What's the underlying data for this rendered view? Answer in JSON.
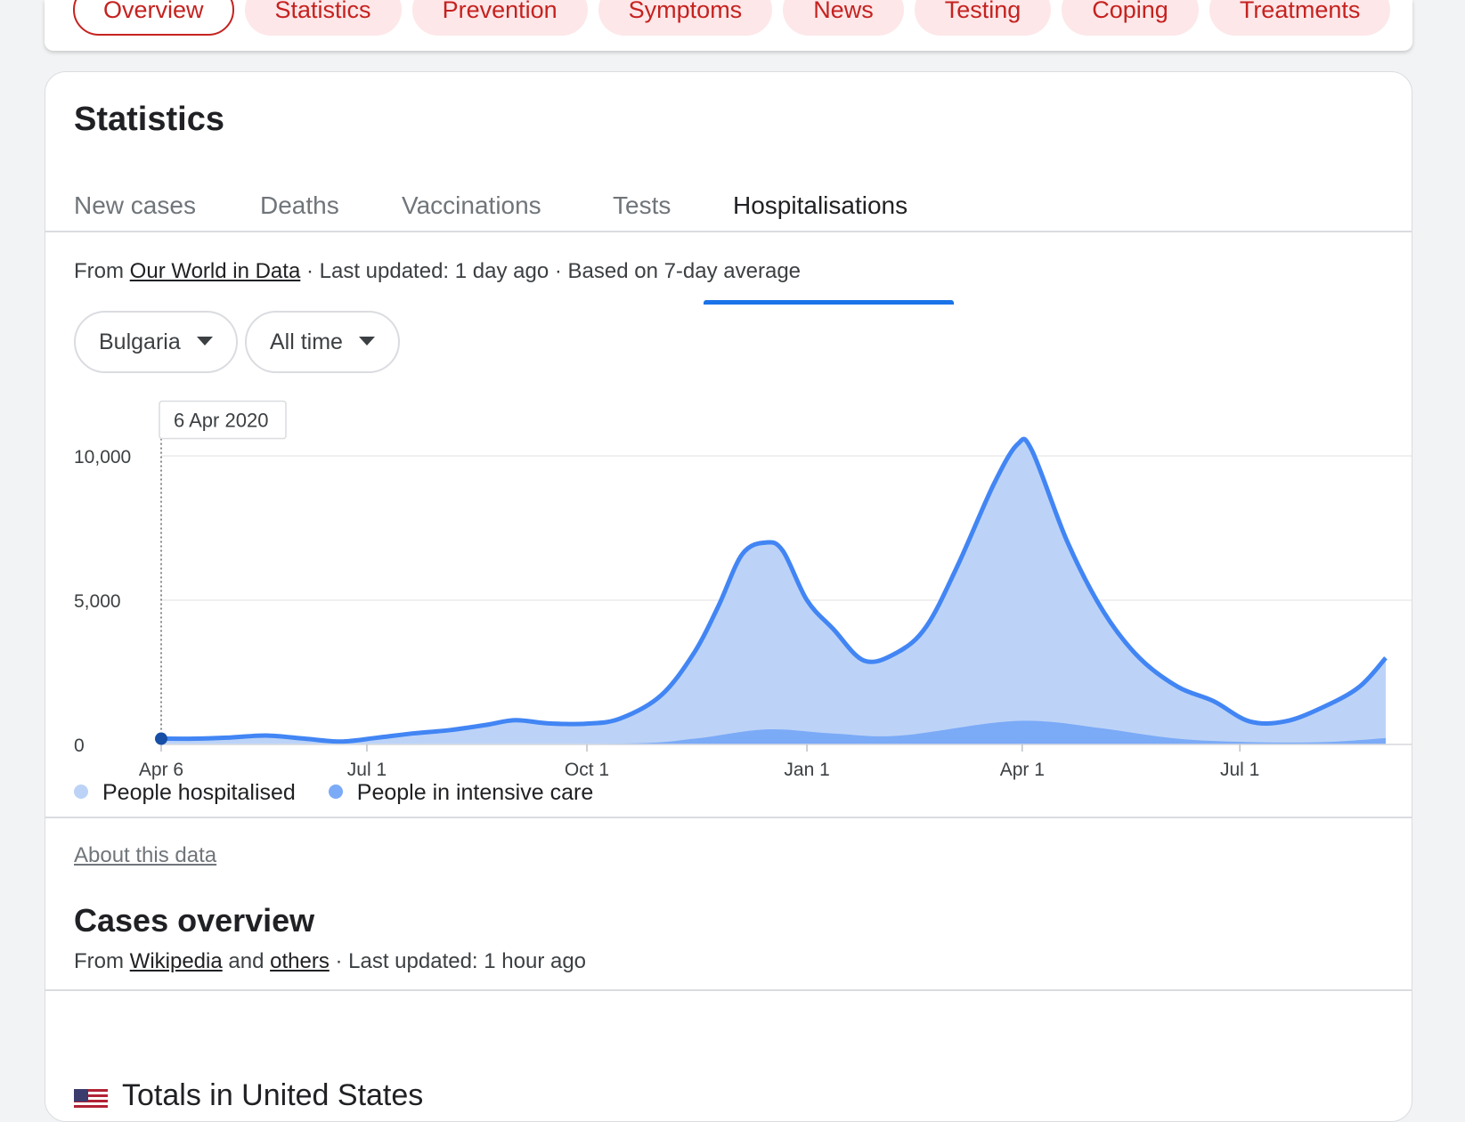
{
  "chips": [
    {
      "label": "Overview",
      "active": true
    },
    {
      "label": "Statistics",
      "active": false
    },
    {
      "label": "Prevention",
      "active": false
    },
    {
      "label": "Symptoms",
      "active": false
    },
    {
      "label": "News",
      "active": false
    },
    {
      "label": "Testing",
      "active": false
    },
    {
      "label": "Coping",
      "active": false
    },
    {
      "label": "Treatments",
      "active": false
    }
  ],
  "section_title": "Statistics",
  "tabs": [
    {
      "label": "New cases",
      "active": false
    },
    {
      "label": "Deaths",
      "active": false
    },
    {
      "label": "Vaccinations",
      "active": false
    },
    {
      "label": "Tests",
      "active": false
    },
    {
      "label": "Hospitalisations",
      "active": true
    }
  ],
  "source": {
    "prefix": "From",
    "link": "Our World in Data",
    "suffix": "· Last updated: 1 day ago · Based on 7-day average"
  },
  "filters": {
    "region": "Bulgaria",
    "range": "All time"
  },
  "colors": {
    "brand_red": "#c5221f",
    "chip_bg": "#fde7e9",
    "accent_blue": "#1a73e8",
    "hosp_fill": "#bcd3f7",
    "hosp_line": "#4285f4",
    "icu_fill": "#7baaf7"
  },
  "chart_data": {
    "type": "area",
    "tooltip": "6 Apr 2020",
    "x_ticks": [
      "Apr 6",
      "Jul 1",
      "Oct 1",
      "Jan 1",
      "Apr 1",
      "Jul 1"
    ],
    "y_ticks": [
      "0",
      "5,000",
      "10,000"
    ],
    "ylim": [
      0,
      10000
    ],
    "x_range": [
      "2020-04-06",
      "2021-08-31"
    ],
    "grid": true,
    "legend_position": "bottom-left",
    "series": [
      {
        "name": "People hospitalised",
        "points": [
          [
            "2020-04-06",
            200
          ],
          [
            "2020-04-20",
            200
          ],
          [
            "2020-05-05",
            240
          ],
          [
            "2020-05-20",
            310
          ],
          [
            "2020-06-05",
            200
          ],
          [
            "2020-06-20",
            100
          ],
          [
            "2020-07-05",
            230
          ],
          [
            "2020-07-20",
            380
          ],
          [
            "2020-08-05",
            500
          ],
          [
            "2020-08-20",
            680
          ],
          [
            "2020-09-01",
            840
          ],
          [
            "2020-09-15",
            730
          ],
          [
            "2020-10-01",
            720
          ],
          [
            "2020-10-15",
            900
          ],
          [
            "2020-11-01",
            1700
          ],
          [
            "2020-11-15",
            3200
          ],
          [
            "2020-11-25",
            4800
          ],
          [
            "2020-12-05",
            6600
          ],
          [
            "2020-12-15",
            7000
          ],
          [
            "2020-12-22",
            6700
          ],
          [
            "2021-01-01",
            5000
          ],
          [
            "2021-01-12",
            4000
          ],
          [
            "2021-01-25",
            2900
          ],
          [
            "2021-02-08",
            3200
          ],
          [
            "2021-02-20",
            4100
          ],
          [
            "2021-03-05",
            6200
          ],
          [
            "2021-03-20",
            9000
          ],
          [
            "2021-03-30",
            10400
          ],
          [
            "2021-04-05",
            10200
          ],
          [
            "2021-04-20",
            7000
          ],
          [
            "2021-05-05",
            4600
          ],
          [
            "2021-05-20",
            3000
          ],
          [
            "2021-06-05",
            2000
          ],
          [
            "2021-06-20",
            1500
          ],
          [
            "2021-07-05",
            800
          ],
          [
            "2021-07-20",
            800
          ],
          [
            "2021-08-05",
            1300
          ],
          [
            "2021-08-20",
            2000
          ],
          [
            "2021-08-31",
            3000
          ]
        ]
      },
      {
        "name": "People in intensive care",
        "points": [
          [
            "2020-04-06",
            0
          ],
          [
            "2020-07-05",
            10
          ],
          [
            "2020-10-15",
            30
          ],
          [
            "2020-11-15",
            200
          ],
          [
            "2020-12-15",
            520
          ],
          [
            "2021-01-12",
            380
          ],
          [
            "2021-02-08",
            300
          ],
          [
            "2021-03-20",
            750
          ],
          [
            "2021-04-10",
            800
          ],
          [
            "2021-05-05",
            550
          ],
          [
            "2021-06-05",
            200
          ],
          [
            "2021-07-05",
            80
          ],
          [
            "2021-08-05",
            80
          ],
          [
            "2021-08-31",
            220
          ]
        ]
      }
    ]
  },
  "legend": [
    {
      "label": "People hospitalised",
      "color": "#bcd3f7"
    },
    {
      "label": "People in intensive care",
      "color": "#7baaf7"
    }
  ],
  "about_link": "About this data",
  "cases_overview": {
    "title": "Cases overview",
    "prefix": "From",
    "link1": "Wikipedia",
    "and": "and",
    "link2": "others",
    "suffix": "· Last updated: 1 hour ago"
  },
  "totals_label": "Totals in United States"
}
